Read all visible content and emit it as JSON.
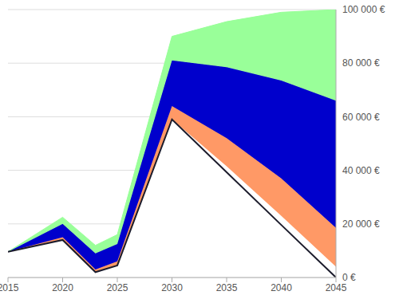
{
  "chart_data": {
    "type": "area",
    "stacked": true,
    "grid": true,
    "x": [
      2015,
      2020,
      2023,
      2025,
      2030,
      2035,
      2040,
      2045
    ],
    "xlim": [
      2015,
      2045
    ],
    "xticks": [
      2015,
      2020,
      2025,
      2030,
      2035,
      2040,
      2045
    ],
    "ylim": [
      0,
      100000
    ],
    "yticks": [
      {
        "value": 0,
        "label": "0 €"
      },
      {
        "value": 20000,
        "label": "20 000 €"
      },
      {
        "value": 40000,
        "label": "40 000 €"
      },
      {
        "value": 60000,
        "label": "60 000 €"
      },
      {
        "value": 80000,
        "label": "80 000 €"
      },
      {
        "value": 100000,
        "label": "100 000 €"
      }
    ],
    "series": [
      {
        "type": "area",
        "color": "#ffffff",
        "values": [
          9600,
          14000,
          2000,
          4500,
          59000,
          41500,
          23000,
          4000
        ]
      },
      {
        "type": "area",
        "color": "#ff9966",
        "values": [
          0,
          1000,
          1000,
          1500,
          5000,
          10500,
          14000,
          14500
        ]
      },
      {
        "type": "area",
        "color": "#0000cc",
        "values": [
          0,
          5000,
          6000,
          6500,
          17000,
          26500,
          36500,
          47500
        ]
      },
      {
        "type": "area",
        "color": "#99ff99",
        "values": [
          0,
          2500,
          3000,
          3500,
          9000,
          17000,
          25500,
          34000
        ]
      },
      {
        "type": "line",
        "color": "#1c1c2c",
        "values": [
          9600,
          14000,
          2000,
          4500,
          59000,
          39300,
          19600,
          0
        ]
      }
    ]
  }
}
